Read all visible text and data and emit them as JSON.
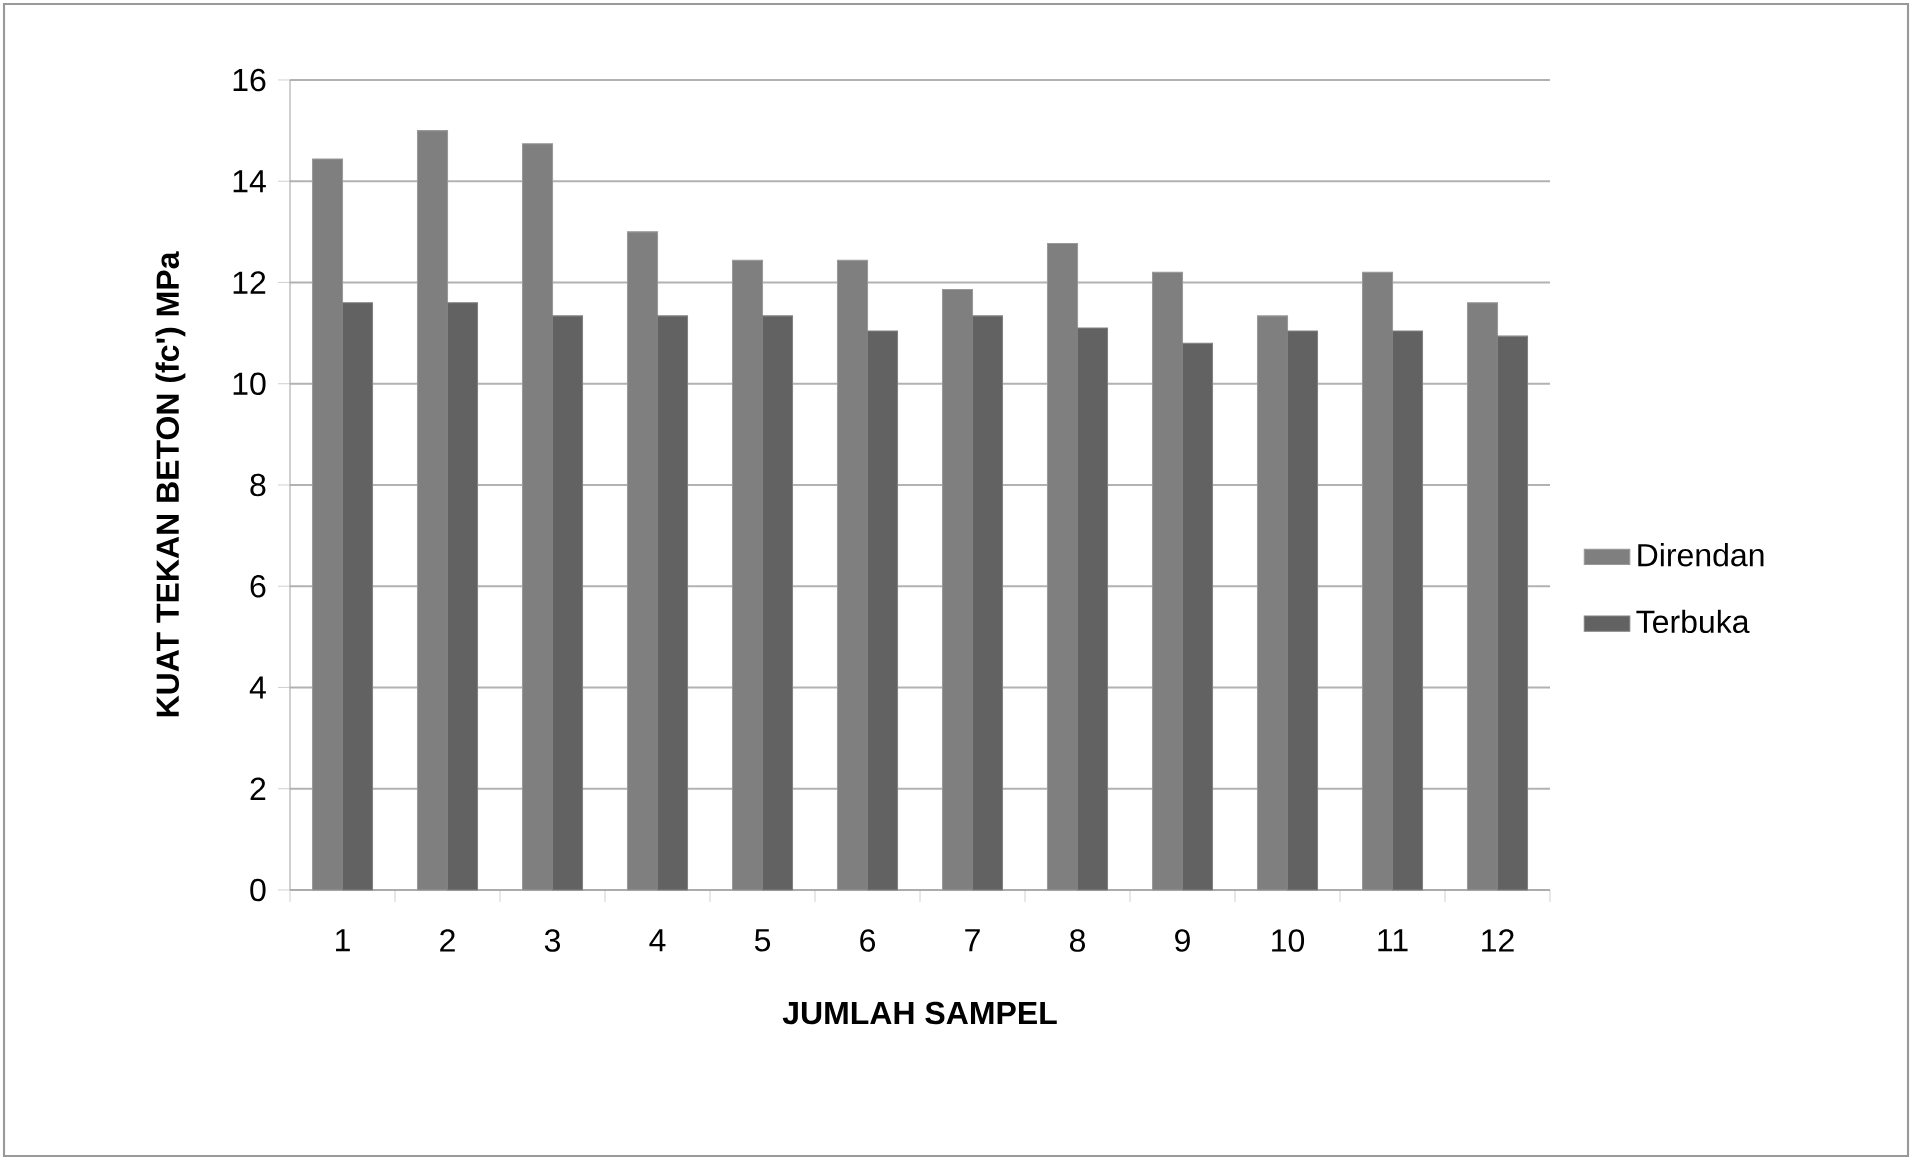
{
  "chart_data": {
    "type": "bar",
    "xlabel": "JUMLAH SAMPEL",
    "ylabel": "KUAT TEKAN BETON (fc') MPa",
    "categories": [
      "1",
      "2",
      "3",
      "4",
      "5",
      "6",
      "7",
      "8",
      "9",
      "10",
      "11",
      "12"
    ],
    "series": [
      {
        "name": "Direndan",
        "color": "#7f7f7f",
        "values": [
          14.44,
          15.0,
          14.74,
          13.0,
          12.44,
          12.44,
          11.86,
          12.77,
          12.2,
          11.34,
          12.2,
          11.6
        ]
      },
      {
        "name": "Terbuka",
        "color": "#626262",
        "values": [
          11.6,
          11.6,
          11.34,
          11.34,
          11.34,
          11.04,
          11.34,
          11.1,
          10.8,
          11.04,
          11.04,
          10.94
        ]
      }
    ],
    "ylim": [
      0,
      16
    ],
    "yticks": [
      0,
      2,
      4,
      6,
      8,
      10,
      12,
      14,
      16
    ],
    "grid": "y",
    "legend": "right"
  }
}
